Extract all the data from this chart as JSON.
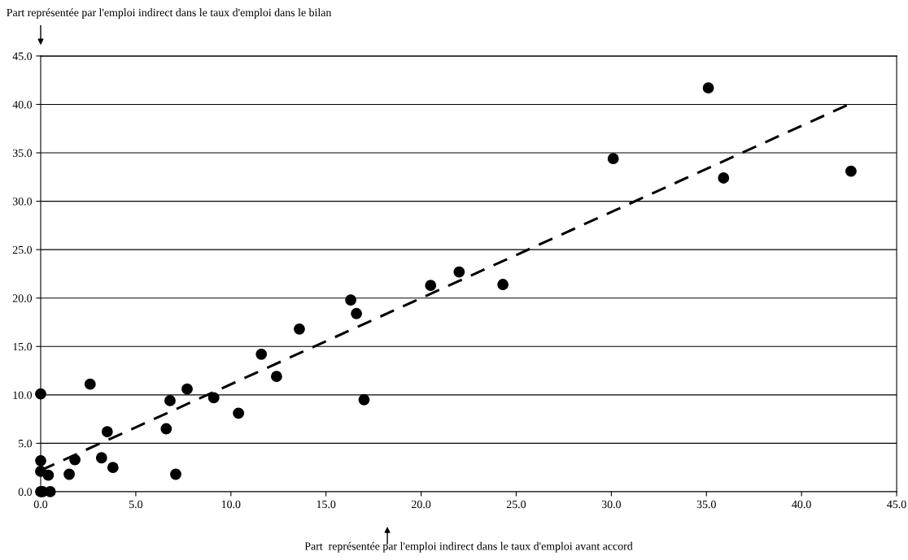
{
  "chart_data": {
    "type": "scatter",
    "xlabel": "Part  représentée par l'emploi indirect dans le taux d'emploi avant accord",
    "ylabel": "Part représentée par l'emploi indirect dans le taux d'emploi dans le bilan",
    "series": [
      {
        "color": "#000000",
        "marker": "circle",
        "x": [
          0,
          0,
          0,
          0,
          0.1,
          0.4,
          0.5,
          1.5,
          1.8,
          2.6,
          3.2,
          3.5,
          3.8,
          6.6,
          6.8,
          7.1,
          7.7,
          9.1,
          10.4,
          11.6,
          12.4,
          13.6,
          16.3,
          16.6,
          17.0,
          20.5,
          22.0,
          24.3,
          30.1,
          35.1,
          35.9,
          42.6
        ],
        "values": [
          10.1,
          3.2,
          2.1,
          0,
          0,
          1.7,
          0,
          1.8,
          3.3,
          11.1,
          3.5,
          6.2,
          2.5,
          6.5,
          9.4,
          1.8,
          10.6,
          9.7,
          8.1,
          14.2,
          11.9,
          16.8,
          19.8,
          18.4,
          9.5,
          21.3,
          22.7,
          21.4,
          34.4,
          41.7,
          32.4,
          33.1
        ]
      },
      {
        "type": "line",
        "color": "#000000",
        "line_style": "dashed",
        "marker": "none",
        "x": [
          0,
          42.6
        ],
        "values": [
          2.2,
          40.1
        ]
      }
    ],
    "xlim": [
      0,
      45
    ],
    "ylim": [
      0,
      45
    ],
    "xticks": [
      {
        "value": 0,
        "label": "0.0"
      },
      {
        "value": 5,
        "label": "5.0"
      },
      {
        "value": 10,
        "label": "10.0"
      },
      {
        "value": 15,
        "label": "15.0"
      },
      {
        "value": 20,
        "label": "20.0"
      },
      {
        "value": 25,
        "label": "25.0"
      },
      {
        "value": 30,
        "label": "30.0"
      },
      {
        "value": 35,
        "label": "35.0"
      },
      {
        "value": 40,
        "label": "40.0"
      },
      {
        "value": 45,
        "label": "45.0"
      }
    ],
    "yticks": [
      {
        "value": 0,
        "label": "0.0"
      },
      {
        "value": 5,
        "label": "5.0"
      },
      {
        "value": 10,
        "label": "10.0"
      },
      {
        "value": 15,
        "label": "15.0"
      },
      {
        "value": 20,
        "label": "20.0"
      },
      {
        "value": 25,
        "label": "25.0"
      },
      {
        "value": 30,
        "label": "30.0"
      },
      {
        "value": 35,
        "label": "35.0"
      },
      {
        "value": 40,
        "label": "40.0"
      },
      {
        "value": 45,
        "label": "45.0"
      }
    ],
    "grid": "y"
  }
}
